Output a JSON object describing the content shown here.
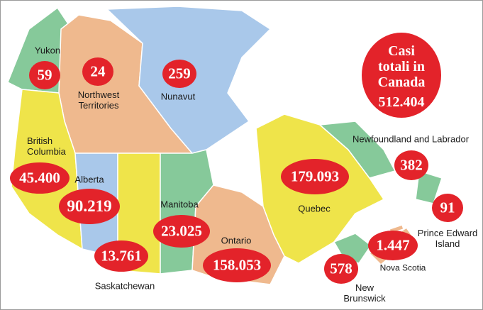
{
  "title": {
    "text": "Casi totali in Canada",
    "total": "512.404"
  },
  "regions": [
    {
      "name": "Yukon",
      "cases": "59"
    },
    {
      "name": "Northwest Territories",
      "cases": "24"
    },
    {
      "name": "Nunavut",
      "cases": "259"
    },
    {
      "name": "British Columbia",
      "cases": "45.400"
    },
    {
      "name": "Alberta",
      "cases": "90.219"
    },
    {
      "name": "Saskatchewan",
      "cases": "13.761"
    },
    {
      "name": "Manitoba",
      "cases": "23.025"
    },
    {
      "name": "Ontario",
      "cases": "158.053"
    },
    {
      "name": "Quebec",
      "cases": "179.093"
    },
    {
      "name": "Newfoundland and Labrador",
      "cases": "382"
    },
    {
      "name": "Prince Edward Island",
      "cases": "91"
    },
    {
      "name": "Nova Scotia",
      "cases": "1.447"
    },
    {
      "name": "New Brunswick",
      "cases": "578"
    }
  ]
}
